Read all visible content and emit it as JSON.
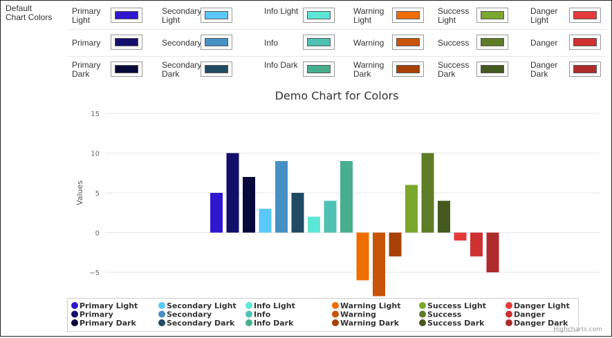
{
  "section_label": "Default Chart Colors",
  "palette": {
    "rows": [
      [
        {
          "label": "Primary Light",
          "color": "#2F17D0"
        },
        {
          "label": "Secondary Light",
          "color": "#5AC8FA"
        },
        {
          "label": "Info Light",
          "color": "#5DE6D5"
        },
        {
          "label": "Warning Light",
          "color": "#F06D00"
        },
        {
          "label": "Success Light",
          "color": "#7BA72D"
        },
        {
          "label": "Danger Light",
          "color": "#E63B3B"
        }
      ],
      [
        {
          "label": "Primary",
          "color": "#130F6B"
        },
        {
          "label": "Secondary",
          "color": "#4691C4"
        },
        {
          "label": "Info",
          "color": "#4FC2B4"
        },
        {
          "label": "Warning",
          "color": "#C85408"
        },
        {
          "label": "Success",
          "color": "#5E7C26"
        },
        {
          "label": "Danger",
          "color": "#CF3131"
        }
      ],
      [
        {
          "label": "Primary Dark",
          "color": "#08083A"
        },
        {
          "label": "Secondary Dark",
          "color": "#1F4B63"
        },
        {
          "label": "Info Dark",
          "color": "#48AF8E"
        },
        {
          "label": "Warning Dark",
          "color": "#A84106"
        },
        {
          "label": "Success Dark",
          "color": "#445A1F"
        },
        {
          "label": "Danger Dark",
          "color": "#B02C2C"
        }
      ]
    ]
  },
  "chart_data": {
    "type": "bar",
    "title": "Demo Chart for Colors",
    "xlabel": "",
    "ylabel": "Values",
    "ylim": [
      -8,
      15
    ],
    "yticks": [
      15,
      10,
      5,
      0,
      -5
    ],
    "ytick_labels": [
      "15",
      "10",
      "5",
      "0",
      "−5"
    ],
    "xticks_visible": [
      "-10",
      "0"
    ],
    "grid": true,
    "legend_position": "bottom",
    "credits": "Highcharts.com",
    "series": [
      {
        "name": "Primary Light",
        "value": 5,
        "color": "#2F17D0"
      },
      {
        "name": "Primary",
        "value": 10,
        "color": "#130F6B"
      },
      {
        "name": "Primary Dark",
        "value": 7,
        "color": "#08083A"
      },
      {
        "name": "Secondary Light",
        "value": 3,
        "color": "#5AC8FA"
      },
      {
        "name": "Secondary",
        "value": 9,
        "color": "#4691C4"
      },
      {
        "name": "Secondary Dark",
        "value": 5,
        "color": "#1F4B63"
      },
      {
        "name": "Info Light",
        "value": 2,
        "color": "#5DE6D5"
      },
      {
        "name": "Info",
        "value": 4,
        "color": "#4FC2B4"
      },
      {
        "name": "Info Dark",
        "value": 9,
        "color": "#48AF8E"
      },
      {
        "name": "Warning Light",
        "value": -6,
        "color": "#F06D00"
      },
      {
        "name": "Warning",
        "value": -8,
        "color": "#C85408"
      },
      {
        "name": "Warning Dark",
        "value": -3,
        "color": "#A84106"
      },
      {
        "name": "Success Light",
        "value": 6,
        "color": "#7BA72D"
      },
      {
        "name": "Success",
        "value": 10,
        "color": "#5E7C26"
      },
      {
        "name": "Success Dark",
        "value": 4,
        "color": "#445A1F"
      },
      {
        "name": "Danger Light",
        "value": -1,
        "color": "#E63B3B"
      },
      {
        "name": "Danger",
        "value": -3,
        "color": "#CF3131"
      },
      {
        "name": "Danger Dark",
        "value": -5,
        "color": "#B02C2C"
      }
    ]
  }
}
